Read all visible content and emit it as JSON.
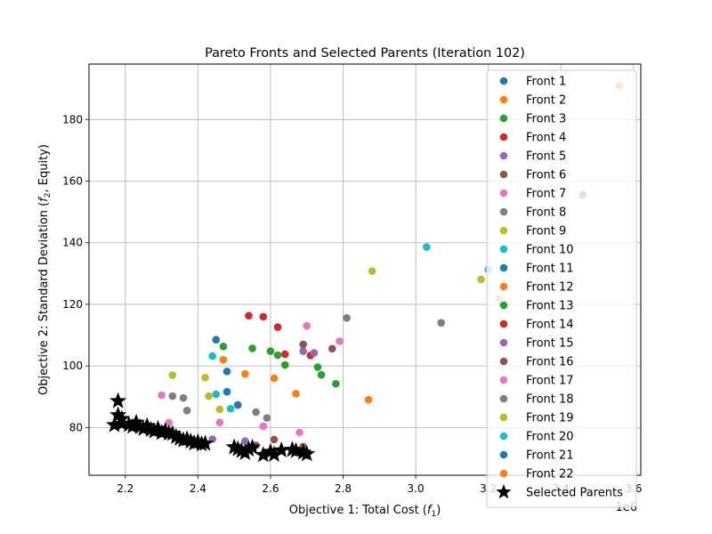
{
  "chart_data": {
    "type": "scatter",
    "title": "Pareto Fronts and Selected Parents (Iteration 102)",
    "xlabel": "Objective 1: Total Cost (",
    "xlabel_sym": "f",
    "xlabel_sub": "1",
    "xlabel_end": ")",
    "ylabel": "Objective 2: Standard Deviation (",
    "ylabel_sym": "f",
    "ylabel_sub": "2",
    "ylabel_end": ", Equity)",
    "x_offset_label": "1e6",
    "xlim": [
      2.1,
      3.62
    ],
    "ylim": [
      64.5,
      198
    ],
    "xticks": [
      2.2,
      2.4,
      2.6,
      2.8,
      3.0,
      3.2,
      3.4,
      3.6
    ],
    "xtick_labels": [
      "2.2",
      "2.4",
      "2.6",
      "2.8",
      "3.0",
      "3.2",
      "3.4",
      "3.6"
    ],
    "yticks": [
      80,
      100,
      120,
      140,
      160,
      180
    ],
    "ytick_labels": [
      "80",
      "100",
      "120",
      "140",
      "160",
      "180"
    ],
    "grid": true,
    "legend_placement": "top-right",
    "series": [
      {
        "name": "Front 1",
        "color": "#1f77b4",
        "points": [
          [
            2.45,
            108.5
          ],
          [
            2.48,
            98.2
          ],
          [
            2.48,
            91.6
          ],
          [
            2.51,
            87.3
          ]
        ]
      },
      {
        "name": "Front 2",
        "color": "#ff7f0e",
        "points": [
          [
            3.56,
            191.0
          ],
          [
            2.87,
            89.0
          ],
          [
            2.67,
            91.0
          ],
          [
            2.61,
            96.0
          ],
          [
            2.53,
            97.4
          ],
          [
            2.47,
            102.0
          ]
        ]
      },
      {
        "name": "Front 3",
        "color": "#2ca02c",
        "points": [
          [
            2.47,
            106.3
          ],
          [
            2.55,
            105.7
          ],
          [
            2.6,
            104.8
          ],
          [
            2.64,
            100.3
          ],
          [
            2.73,
            99.6
          ],
          [
            2.74,
            97.1
          ],
          [
            2.78,
            94.2
          ],
          [
            2.62,
            103.5
          ]
        ]
      },
      {
        "name": "Front 4",
        "color": "#d62728",
        "points": [
          [
            2.54,
            116.3
          ],
          [
            2.58,
            116.0
          ],
          [
            2.62,
            112.6
          ],
          [
            2.64,
            103.8
          ],
          [
            2.71,
            103.4
          ]
        ]
      },
      {
        "name": "Front 5",
        "color": "#9467bd",
        "points": [
          [
            2.69,
            104.8
          ],
          [
            2.72,
            104.2
          ]
        ]
      },
      {
        "name": "Front 6",
        "color": "#8c564b",
        "points": [
          [
            2.69,
            107.0
          ],
          [
            2.77,
            105.6
          ]
        ]
      },
      {
        "name": "Front 7",
        "color": "#e377c2",
        "points": [
          [
            2.7,
            113.0
          ],
          [
            2.79,
            108.0
          ],
          [
            2.3,
            90.5
          ]
        ]
      },
      {
        "name": "Front 8",
        "color": "#7f7f7f",
        "points": [
          [
            2.81,
            115.6
          ],
          [
            3.07,
            114.0
          ],
          [
            2.33,
            90.2
          ],
          [
            2.36,
            89.6
          ],
          [
            2.37,
            85.5
          ]
        ]
      },
      {
        "name": "Front 9",
        "color": "#bcbd22",
        "points": [
          [
            2.88,
            130.8
          ],
          [
            3.18,
            128.1
          ],
          [
            2.33,
            97.0
          ],
          [
            2.42,
            96.2
          ]
        ]
      },
      {
        "name": "Front 10",
        "color": "#17becf",
        "points": [
          [
            3.03,
            138.6
          ],
          [
            3.2,
            131.3
          ],
          [
            2.45,
            90.8
          ],
          [
            2.49,
            86.1
          ]
        ]
      },
      {
        "name": "Front 11",
        "color": "#1f77b4",
        "points": [
          [
            3.46,
            155.5
          ]
        ]
      },
      {
        "name": "Front 12",
        "color": "#ff7f0e",
        "points": []
      },
      {
        "name": "Front 13",
        "color": "#2ca02c",
        "points": []
      },
      {
        "name": "Front 14",
        "color": "#d62728",
        "points": []
      },
      {
        "name": "Front 15",
        "color": "#9467bd",
        "points": [
          [
            2.44,
            76.2
          ],
          [
            2.53,
            75.6
          ],
          [
            2.69,
            72.5
          ]
        ]
      },
      {
        "name": "Front 16",
        "color": "#8c564b",
        "points": [
          [
            2.61,
            76.1
          ],
          [
            2.69,
            73.8
          ],
          [
            2.56,
            74.2
          ]
        ]
      },
      {
        "name": "Front 17",
        "color": "#e377c2",
        "points": [
          [
            2.46,
            81.6
          ],
          [
            2.58,
            80.4
          ],
          [
            2.68,
            78.4
          ],
          [
            2.32,
            81.6
          ]
        ]
      },
      {
        "name": "Front 18",
        "color": "#7f7f7f",
        "points": [
          [
            2.56,
            85.0
          ],
          [
            2.59,
            83.1
          ]
        ]
      },
      {
        "name": "Front 19",
        "color": "#bcbd22",
        "points": [
          [
            3.23,
            121.8
          ],
          [
            2.43,
            90.2
          ],
          [
            2.46,
            85.9
          ]
        ]
      },
      {
        "name": "Front 20",
        "color": "#17becf",
        "points": [
          [
            2.44,
            103.2
          ]
        ]
      },
      {
        "name": "Front 21",
        "color": "#1f77b4",
        "points": []
      },
      {
        "name": "Front 22",
        "color": "#ff7f0e",
        "points": []
      },
      {
        "name": "Selected Parents",
        "color": "#000000",
        "marker": "star",
        "points": [
          [
            2.18,
            88.6
          ],
          [
            2.18,
            84.0
          ],
          [
            2.19,
            82.8
          ],
          [
            2.17,
            80.8
          ],
          [
            2.19,
            81.2
          ],
          [
            2.21,
            80.9
          ],
          [
            2.22,
            80.3
          ],
          [
            2.23,
            81.6
          ],
          [
            2.24,
            80.2
          ],
          [
            2.25,
            79.6
          ],
          [
            2.26,
            80.5
          ],
          [
            2.27,
            79.3
          ],
          [
            2.28,
            78.8
          ],
          [
            2.29,
            79.6
          ],
          [
            2.3,
            78.3
          ],
          [
            2.31,
            78.9
          ],
          [
            2.32,
            78.1
          ],
          [
            2.33,
            78.0
          ],
          [
            2.34,
            77.0
          ],
          [
            2.35,
            76.4
          ],
          [
            2.36,
            75.9
          ],
          [
            2.37,
            76.2
          ],
          [
            2.38,
            75.5
          ],
          [
            2.39,
            74.9
          ],
          [
            2.4,
            75.3
          ],
          [
            2.41,
            74.6
          ],
          [
            2.42,
            74.8
          ],
          [
            2.5,
            73.6
          ],
          [
            2.51,
            73.0
          ],
          [
            2.52,
            72.4
          ],
          [
            2.53,
            71.8
          ],
          [
            2.54,
            72.9
          ],
          [
            2.55,
            73.5
          ],
          [
            2.58,
            71.1
          ],
          [
            2.6,
            72.1
          ],
          [
            2.61,
            71.2
          ],
          [
            2.63,
            72.6
          ],
          [
            2.66,
            72.8
          ],
          [
            2.67,
            72.4
          ],
          [
            2.69,
            71.9
          ],
          [
            2.7,
            71.4
          ]
        ]
      }
    ]
  }
}
